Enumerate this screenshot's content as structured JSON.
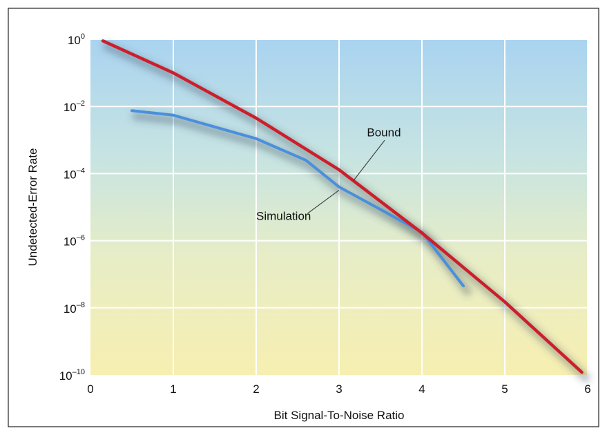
{
  "chart_data": {
    "type": "line",
    "title": "",
    "xlabel": "Bit Signal-To-Noise Ratio",
    "ylabel": "Undetected-Error Rate",
    "xlim": [
      0,
      6
    ],
    "ylim_log10": [
      -10,
      0
    ],
    "y_scale": "log",
    "grid": true,
    "x_ticks": [
      {
        "value": 0,
        "label": "0"
      },
      {
        "value": 1,
        "label": "1"
      },
      {
        "value": 2,
        "label": "2"
      },
      {
        "value": 3,
        "label": "3"
      },
      {
        "value": 4,
        "label": "4"
      },
      {
        "value": 5,
        "label": "5"
      },
      {
        "value": 6,
        "label": "6"
      }
    ],
    "y_ticks": [
      {
        "value": 1,
        "base": "10",
        "exp": "0"
      },
      {
        "value": 0.01,
        "base": "10",
        "exp": "–2"
      },
      {
        "value": 0.0001,
        "base": "10",
        "exp": "–4"
      },
      {
        "value": 1e-06,
        "base": "10",
        "exp": "–6"
      },
      {
        "value": 1e-08,
        "base": "10",
        "exp": "–8"
      },
      {
        "value": 1e-10,
        "base": "10",
        "exp": "–10"
      }
    ],
    "series": [
      {
        "key": "bound",
        "color": "#cc1f2b",
        "x": [
          0.15,
          1.0,
          2.0,
          3.0,
          4.0,
          5.0,
          5.93
        ],
        "y": [
          0.9,
          0.1,
          0.0045,
          0.00013,
          1.7e-06,
          1.5e-08,
          1.2e-10
        ]
      },
      {
        "key": "simulation",
        "color": "#4a8fdd",
        "x": [
          0.5,
          1.0,
          2.0,
          2.6,
          3.0,
          3.5,
          4.0,
          4.5
        ],
        "y": [
          0.0075,
          0.0055,
          0.0011,
          0.00025,
          4e-05,
          8.5e-06,
          1.8e-06,
          4.5e-08
        ]
      }
    ],
    "annotations": [
      {
        "text": "Bound",
        "target": "bound"
      },
      {
        "text": "Simulation",
        "target": "simulation"
      }
    ],
    "background_gradient": [
      "#a9d3f0",
      "#c7e4e2",
      "#e7edc6",
      "#f7efb1"
    ],
    "grid_color": "#ffffff"
  }
}
